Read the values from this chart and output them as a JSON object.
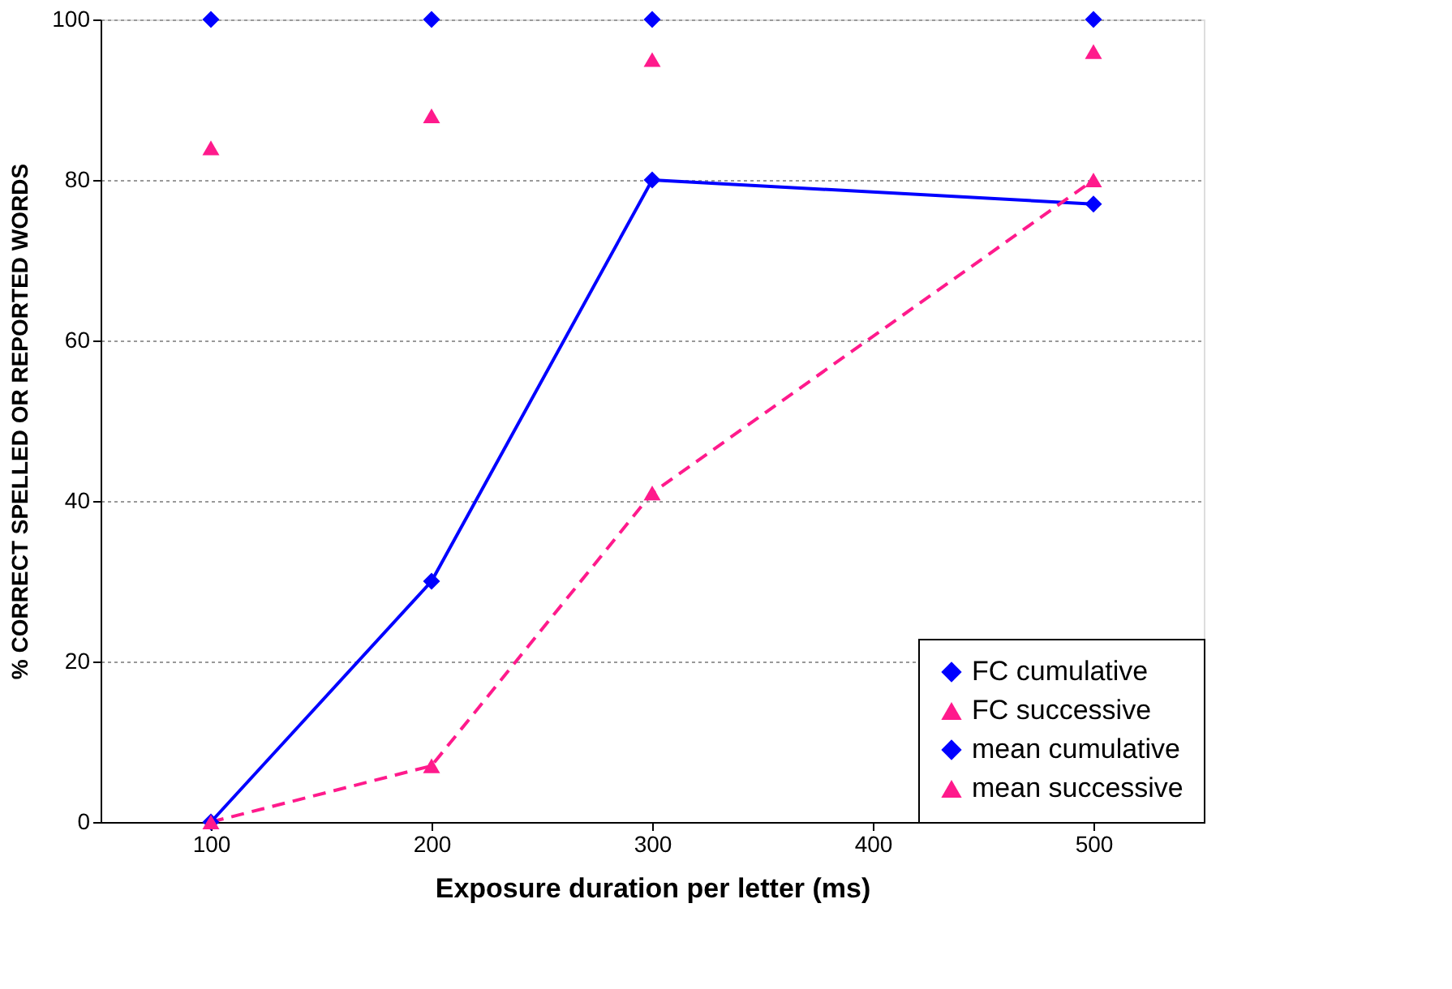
{
  "chart_data": {
    "type": "line",
    "xlabel": "Exposure duration per letter (ms)",
    "ylabel": "% CORRECT SPELLED OR REPORTED WORDS",
    "x": [
      100,
      200,
      300,
      500
    ],
    "xlim": [
      50,
      550
    ],
    "xticks": [
      100,
      200,
      300,
      400,
      500
    ],
    "ylim": [
      0,
      100
    ],
    "yticks": [
      0,
      20,
      40,
      60,
      80,
      100
    ],
    "grid": "y",
    "legend": "bottom right",
    "series": [
      {
        "name": "FC cumulative",
        "color": "#0000ff",
        "marker": "diamond",
        "line_style": "solid",
        "values": [
          0,
          30,
          80,
          77
        ]
      },
      {
        "name": "FC successive",
        "color": "#ff1a8c",
        "marker": "triangle",
        "line_style": "dashed",
        "values": [
          0,
          7,
          41,
          80
        ]
      },
      {
        "name": "mean cumulative",
        "type": "scatter",
        "color": "#0000ff",
        "marker": "diamond",
        "values": [
          100,
          100,
          100,
          100
        ]
      },
      {
        "name": "mean successive",
        "type": "scatter",
        "color": "#ff1a8c",
        "marker": "triangle",
        "values": [
          84,
          88,
          95,
          96
        ]
      }
    ]
  }
}
